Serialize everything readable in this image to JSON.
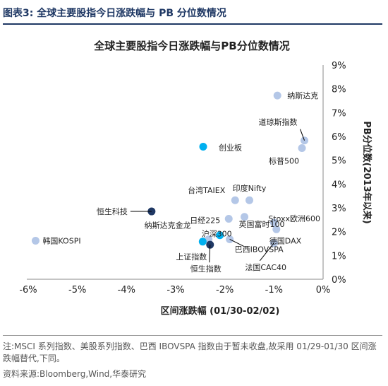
{
  "figure_label": "图表3:  全球主要股指今日涨跌幅与 PB 分位数情况",
  "note": "注:MSCI 系列指数、美股系列指数、巴西 IBOVSPA 指数由于暂未收盘,故采用 01/29-01/30 区间涨跌幅替代,下同。",
  "source": "资料来源:Bloomberg,Wind,华泰研究",
  "colors": {
    "light": "#b4c7e7",
    "cyan": "#00b0f0",
    "dark": "#1f3864",
    "text": "#222222",
    "title": "#1f3864"
  },
  "chart_data": {
    "type": "scatter",
    "title": "全球主要股指今日涨跌幅与PB分位数情况",
    "xlabel": "区间涨跌幅 (01/30-02/02)",
    "ylabel": "PB分位数(2013年以来)",
    "xlim": [
      -0.06,
      0.0
    ],
    "ylim": [
      0.0,
      0.09
    ],
    "xticks": [
      "-6%",
      "-5%",
      "-4%",
      "-3%",
      "-2%",
      "-1%",
      "0%"
    ],
    "yticks": [
      "0%",
      "1%",
      "2%",
      "3%",
      "4%",
      "5%",
      "6%",
      "7%",
      "8%",
      "9%"
    ],
    "grid": false,
    "points": [
      {
        "label": "韩国KOSPI",
        "x": -0.0585,
        "y": 0.0162,
        "color": "light"
      },
      {
        "label": "纳斯达克",
        "x": -0.0093,
        "y": 0.0772,
        "color": "light"
      },
      {
        "label": "道琼斯指数",
        "x": -0.0038,
        "y": 0.0583,
        "color": "light"
      },
      {
        "label": "标普500",
        "x": -0.0043,
        "y": 0.0551,
        "color": "light"
      },
      {
        "label": "创业板",
        "x": -0.0244,
        "y": 0.0557,
        "color": "cyan"
      },
      {
        "label": "台湾TAIEX",
        "x": -0.0179,
        "y": 0.0332,
        "color": "light"
      },
      {
        "label": "印度Nifty",
        "x": -0.015,
        "y": 0.0332,
        "color": "light"
      },
      {
        "label": "恒生科技",
        "x": -0.0349,
        "y": 0.0285,
        "color": "dark"
      },
      {
        "label": "英国富时100",
        "x": -0.016,
        "y": 0.0262,
        "color": "light"
      },
      {
        "label": "日经225",
        "x": -0.0192,
        "y": 0.0254,
        "color": "light"
      },
      {
        "label": "沪深300",
        "x": -0.021,
        "y": 0.0185,
        "color": "cyan"
      },
      {
        "label": "Stoxx欧洲600",
        "x": -0.01,
        "y": 0.0238,
        "color": "light"
      },
      {
        "label": "德国DAX",
        "x": -0.0095,
        "y": 0.021,
        "color": "light"
      },
      {
        "label": "纳斯达克金龙",
        "x": -0.0233,
        "y": 0.0168,
        "color": "light"
      },
      {
        "label": "上证指数",
        "x": -0.0245,
        "y": 0.0158,
        "color": "cyan"
      },
      {
        "label": "巴西IBOVSPA",
        "x": -0.019,
        "y": 0.0168,
        "color": "light"
      },
      {
        "label": "恒生指数",
        "x": -0.023,
        "y": 0.0145,
        "color": "dark"
      },
      {
        "label": "法国CAC40",
        "x": -0.01,
        "y": 0.0152,
        "color": "light"
      }
    ]
  }
}
